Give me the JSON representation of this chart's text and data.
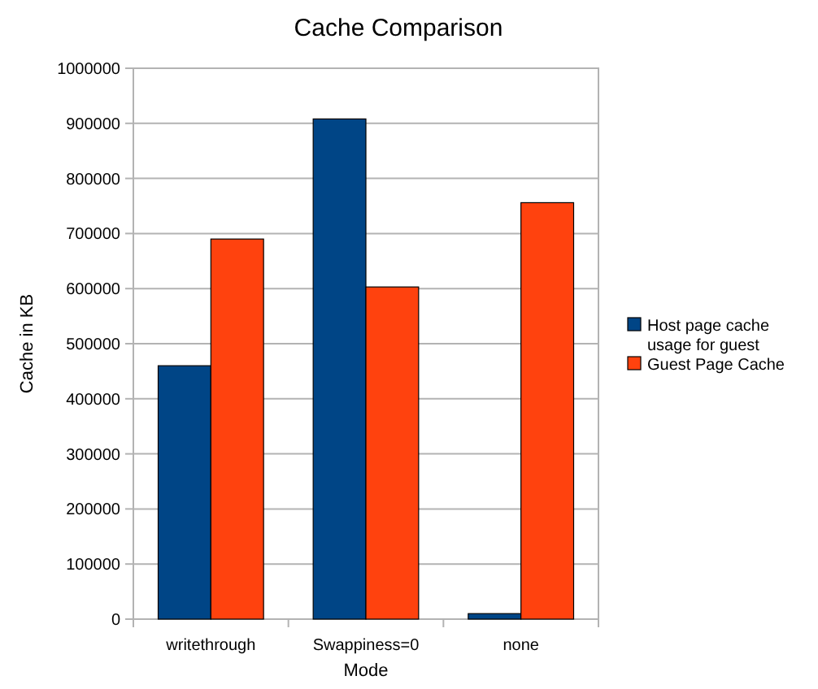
{
  "chart_data": {
    "type": "bar",
    "title": "Cache Comparison",
    "xlabel": "Mode",
    "ylabel": "Cache in KB",
    "categories": [
      "writethrough",
      "Swappiness=0",
      "none"
    ],
    "series": [
      {
        "name": "Host page cache usage for guest",
        "color": "#004586",
        "values": [
          460000,
          908000,
          10000
        ]
      },
      {
        "name": "Guest Page Cache",
        "color": "#ff420e",
        "values": [
          690000,
          603000,
          756000
        ]
      }
    ],
    "ylim": [
      0,
      1000000
    ],
    "yticks": [
      0,
      100000,
      200000,
      300000,
      400000,
      500000,
      600000,
      700000,
      800000,
      900000,
      1000000
    ],
    "grid": "y",
    "legend": "right"
  }
}
